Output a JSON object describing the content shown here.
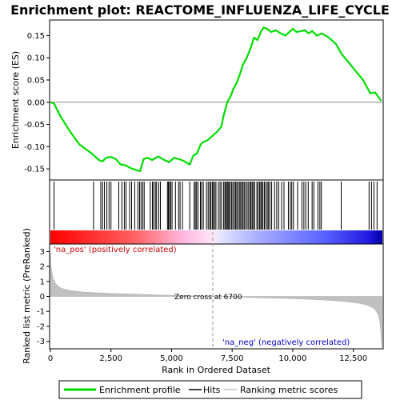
{
  "chart_data": {
    "type": "line",
    "title": "Enrichment plot: REACTOME_INFLUENZA_LIFE_CYCLE",
    "top_panel": {
      "ylabel": "Enrichment score (ES)",
      "ylim": [
        -0.175,
        0.185
      ],
      "yticks": [
        -0.15,
        -0.1,
        -0.05,
        0.0,
        0.05,
        0.1,
        0.15
      ],
      "ytick_labels": [
        "-0.15",
        "-0.10",
        "-0.05",
        "0.00",
        "0.05",
        "0.10",
        "0.15"
      ],
      "series": [
        {
          "name": "Enrichment profile",
          "color": "#00dd00",
          "x": [
            0,
            150,
            400,
            800,
            1200,
            1700,
            2000,
            2150,
            2300,
            2500,
            2700,
            2900,
            3100,
            3300,
            3500,
            3700,
            3850,
            4000,
            4200,
            4450,
            4700,
            4900,
            5100,
            5300,
            5500,
            5750,
            5900,
            6050,
            6200,
            6300,
            6500,
            6700,
            6900,
            7050,
            7150,
            7300,
            7450,
            7550,
            7700,
            7800,
            7950,
            8100,
            8250,
            8400,
            8550,
            8700,
            8800,
            8950,
            9100,
            9300,
            9500,
            9700,
            9900,
            10000,
            10150,
            10350,
            10500,
            10650,
            10800,
            11000,
            11200,
            11500,
            11800,
            12000,
            12300,
            12600,
            12900,
            13200,
            13400,
            13650
          ],
          "values": [
            0.0,
            -0.003,
            -0.03,
            -0.065,
            -0.095,
            -0.115,
            -0.13,
            -0.133,
            -0.125,
            -0.123,
            -0.128,
            -0.14,
            -0.142,
            -0.148,
            -0.152,
            -0.155,
            -0.128,
            -0.125,
            -0.13,
            -0.122,
            -0.13,
            -0.135,
            -0.125,
            -0.128,
            -0.132,
            -0.14,
            -0.12,
            -0.115,
            -0.095,
            -0.09,
            -0.085,
            -0.075,
            -0.065,
            -0.055,
            -0.03,
            0.0,
            0.015,
            0.03,
            0.045,
            0.06,
            0.085,
            0.1,
            0.12,
            0.145,
            0.14,
            0.16,
            0.168,
            0.165,
            0.158,
            0.162,
            0.155,
            0.15,
            0.16,
            0.165,
            0.158,
            0.16,
            0.162,
            0.155,
            0.16,
            0.15,
            0.155,
            0.145,
            0.13,
            0.11,
            0.09,
            0.07,
            0.05,
            0.02,
            0.022,
            0.003
          ]
        }
      ]
    },
    "hits": {
      "label": "Hits",
      "positions": [
        150,
        1780,
        2080,
        2150,
        2230,
        2330,
        2420,
        2500,
        2820,
        2950,
        3050,
        3120,
        3270,
        3350,
        3480,
        3610,
        3680,
        3740,
        3810,
        3870,
        4120,
        4210,
        4260,
        4330,
        4380,
        4470,
        4540,
        4830,
        4870,
        4920,
        4960,
        5020,
        5160,
        5290,
        5350,
        5450,
        5750,
        5930,
        5980,
        6030,
        6090,
        6190,
        6240,
        6310,
        6440,
        6510,
        6570,
        6620,
        6680,
        6720,
        6780,
        6830,
        6930,
        7000,
        7060,
        7150,
        7200,
        7240,
        7290,
        7330,
        7370,
        7420,
        7480,
        7530,
        7590,
        7640,
        7690,
        7740,
        7800,
        7850,
        7900,
        7950,
        8000,
        8060,
        8120,
        8180,
        8240,
        8280,
        8330,
        8380,
        8430,
        8520,
        8570,
        8630,
        8680,
        8720,
        8770,
        8830,
        8890,
        8950,
        9000,
        9060,
        9130,
        9250,
        9340,
        9420,
        9540,
        9640,
        9820,
        9900,
        9960,
        10030,
        10200,
        10380,
        10460,
        10540,
        10640,
        10800,
        10870,
        11040,
        11120,
        11180,
        12000,
        13150,
        13250,
        13350,
        13480
      ]
    },
    "metric_panel": {
      "ylabel": "Ranked list metric (PreRanked)",
      "xlabel": "Rank in Ordered Dataset",
      "ylim": [
        -3.5,
        3.5
      ],
      "yticks": [
        -3,
        -2,
        -1,
        0,
        1,
        2,
        3
      ],
      "ytick_labels": [
        "-3",
        "-2",
        "-1",
        "0",
        "1",
        "2",
        "3"
      ],
      "x": [
        0,
        20,
        60,
        120,
        200,
        300,
        450,
        650,
        900,
        1300,
        1800,
        2500,
        3500,
        4500,
        5500,
        6700,
        7800,
        8800,
        9800,
        10800,
        11600,
        12200,
        12700,
        13000,
        13200,
        13350,
        13450,
        13520,
        13570,
        13610,
        13640,
        13660,
        13680
      ],
      "values": [
        2.9,
        2.1,
        1.6,
        1.2,
        0.9,
        0.7,
        0.55,
        0.45,
        0.38,
        0.3,
        0.25,
        0.2,
        0.15,
        0.09,
        0.05,
        0.0,
        -0.05,
        -0.1,
        -0.14,
        -0.2,
        -0.27,
        -0.35,
        -0.45,
        -0.55,
        -0.68,
        -0.82,
        -1.0,
        -1.2,
        -1.5,
        -1.9,
        -2.5,
        -3.1,
        -3.4
      ]
    },
    "xlim": [
      0,
      13700
    ],
    "xticks": [
      0,
      2500,
      5000,
      7500,
      10000,
      12500
    ],
    "xtick_labels": [
      "0",
      "2,500",
      "5,000",
      "7,500",
      "10,000",
      "12,500"
    ],
    "zero_cross": 6700,
    "annotations": {
      "pos": "'na_pos' (positively correlated)",
      "neg": "'na_neg' (negatively correlated)",
      "zero": "Zero cross at 6700"
    },
    "legend": [
      "Enrichment profile",
      "Hits",
      "Ranking metric scores"
    ]
  }
}
